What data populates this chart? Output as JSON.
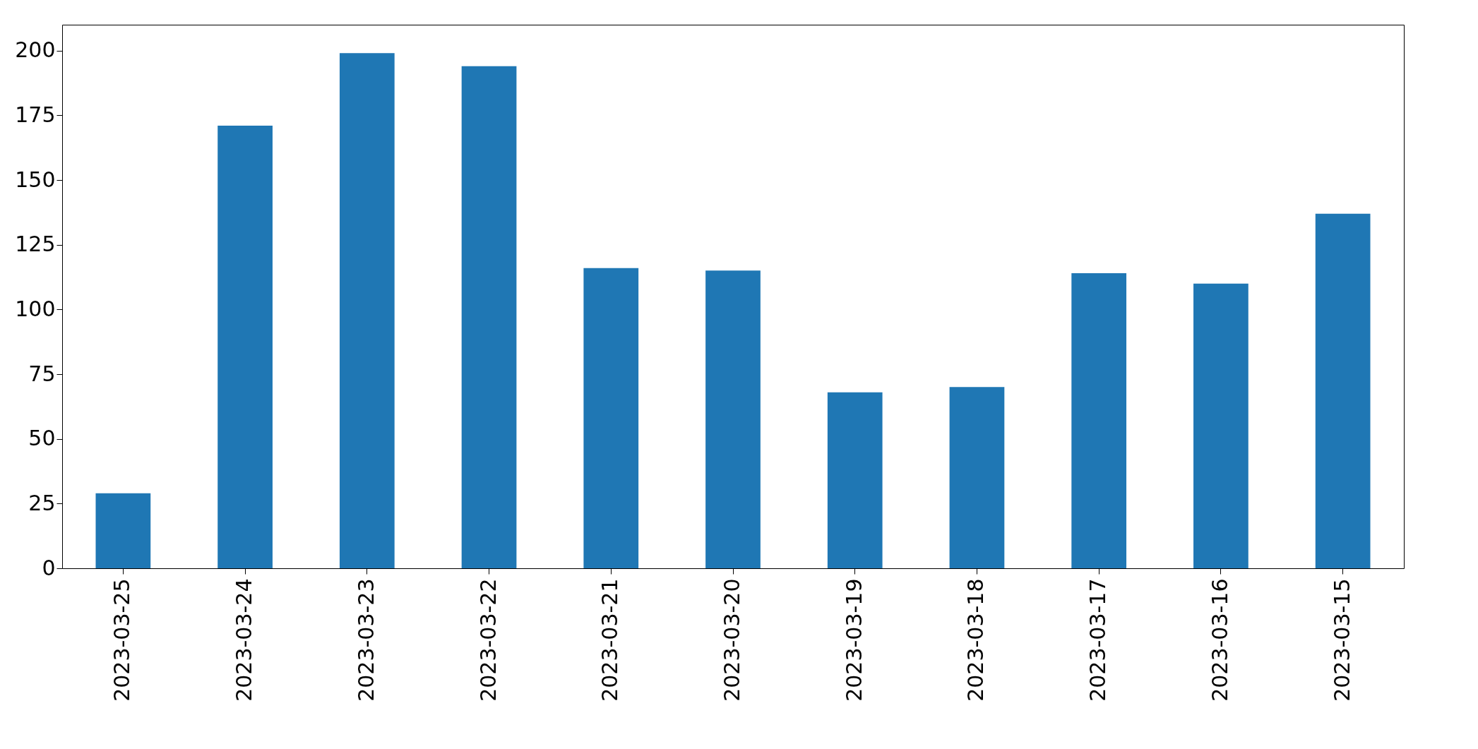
{
  "chart_data": {
    "type": "bar",
    "categories": [
      "2023-03-25",
      "2023-03-24",
      "2023-03-23",
      "2023-03-22",
      "2023-03-21",
      "2023-03-20",
      "2023-03-19",
      "2023-03-18",
      "2023-03-17",
      "2023-03-16",
      "2023-03-15"
    ],
    "values": [
      29,
      171,
      199,
      194,
      116,
      115,
      68,
      70,
      114,
      110,
      137
    ],
    "color": "#1f77b4",
    "ylim": [
      0,
      210
    ],
    "yticks": [
      0,
      25,
      50,
      75,
      100,
      125,
      150,
      175,
      200
    ],
    "grid": false
  }
}
